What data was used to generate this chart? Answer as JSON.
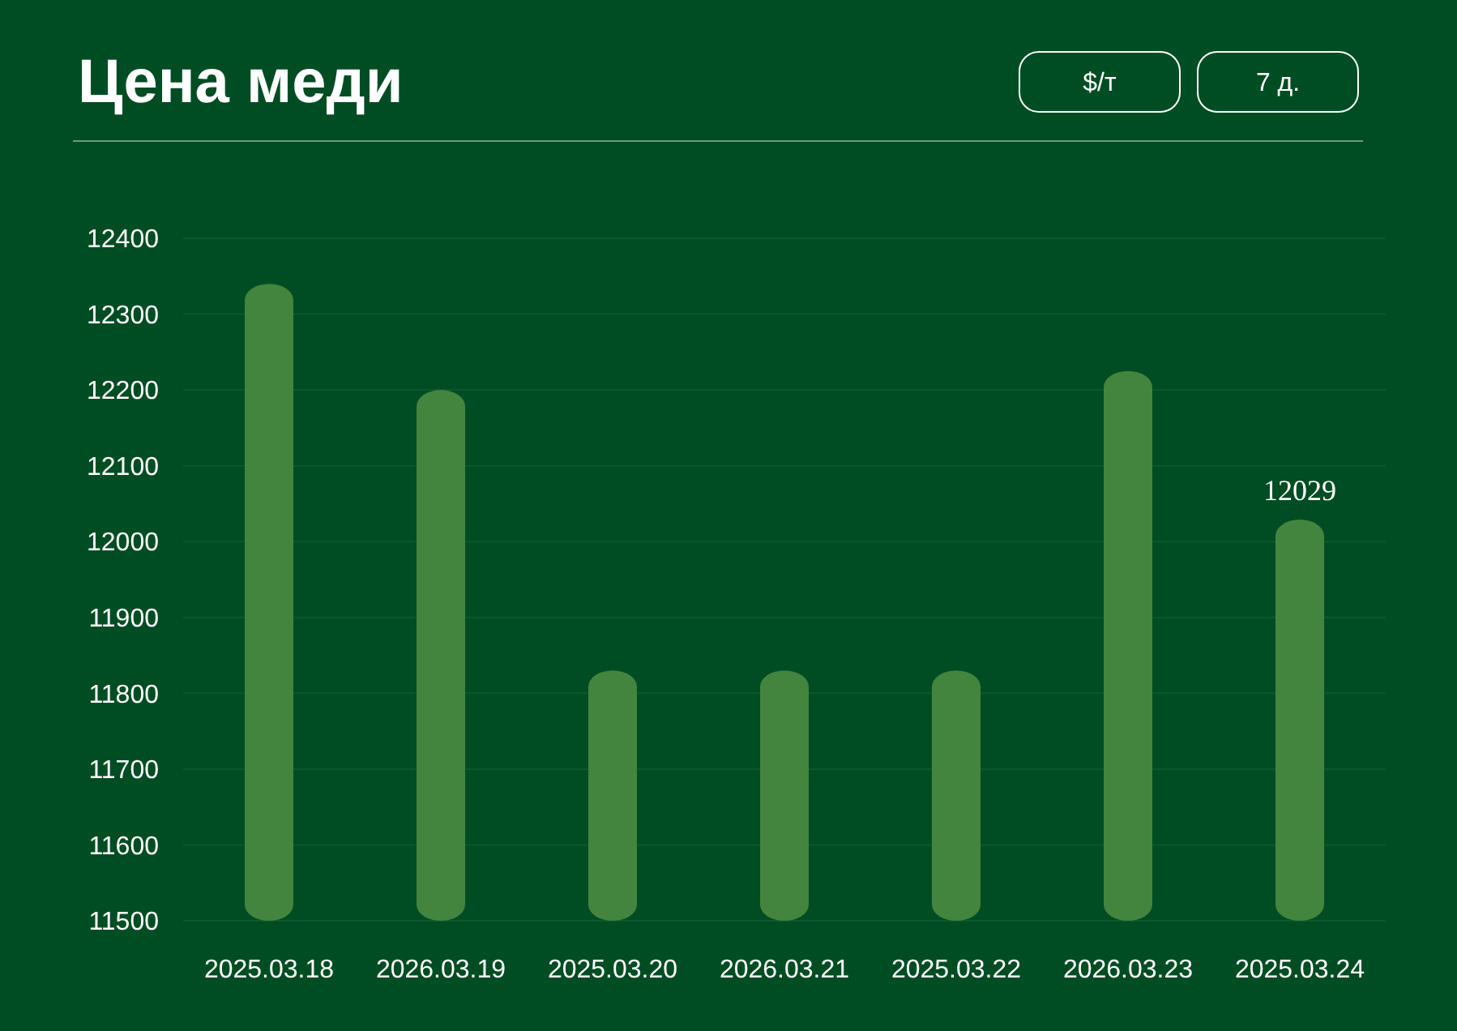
{
  "chart_data": {
    "type": "bar",
    "title": "Цена меди",
    "annotations": [
      "$/т",
      "7 д."
    ],
    "categories": [
      "2025.03.18",
      "2026.03.19",
      "2025.03.20",
      "2026.03.21",
      "2025.03.22",
      "2026.03.23",
      "2025.03.24"
    ],
    "values": [
      12340,
      12200,
      11830,
      11830,
      11830,
      12225,
      12029
    ],
    "value_labels": [
      null,
      null,
      null,
      null,
      null,
      null,
      "12029"
    ],
    "color": "#43843f",
    "ylim": [
      11500,
      12400
    ],
    "yticks": [
      11500,
      11600,
      11700,
      11800,
      11900,
      12000,
      12100,
      12200,
      12300,
      12400
    ],
    "grid": "y"
  }
}
